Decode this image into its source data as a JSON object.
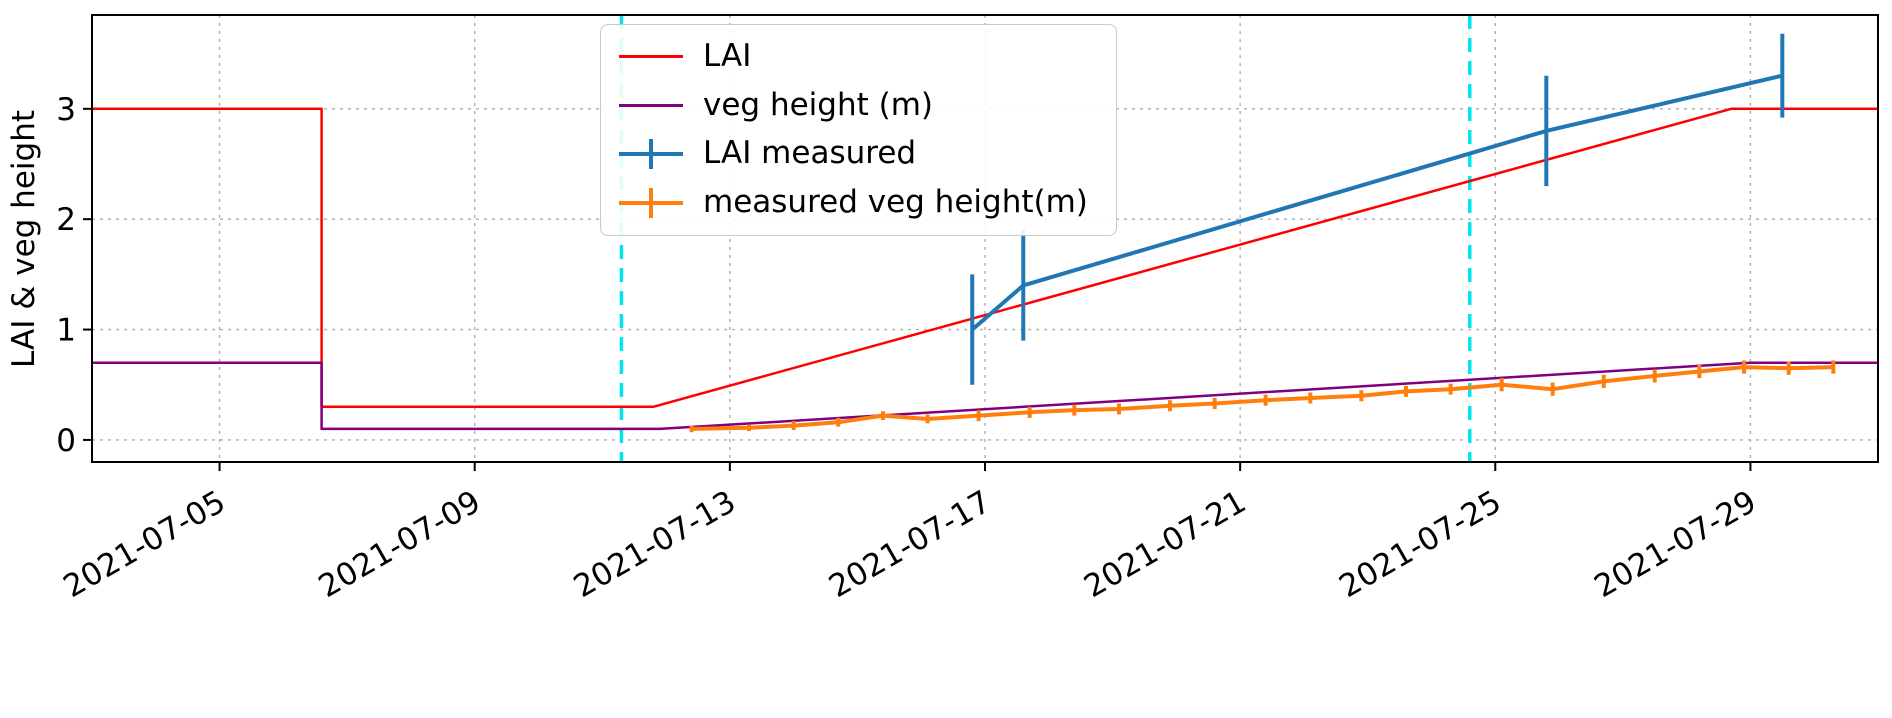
{
  "chart_data": {
    "type": "line",
    "title": "",
    "xlabel": "",
    "ylabel": "LAI & veg height",
    "x_unit": "days since 2021-07-03",
    "xlim": [
      0,
      28
    ],
    "ylim": [
      -0.2,
      3.85
    ],
    "grid": true,
    "grid_color": "#b0b0b0",
    "x_ticks": [
      {
        "day": 2,
        "label": "2021-07-05"
      },
      {
        "day": 6,
        "label": "2021-07-09"
      },
      {
        "day": 10,
        "label": "2021-07-13"
      },
      {
        "day": 14,
        "label": "2021-07-17"
      },
      {
        "day": 18,
        "label": "2021-07-21"
      },
      {
        "day": 22,
        "label": "2021-07-25"
      },
      {
        "day": 26,
        "label": "2021-07-29"
      }
    ],
    "y_ticks": [
      0,
      1,
      2,
      3
    ],
    "vlines": [
      {
        "day": 8.3,
        "color": "#00e5ee",
        "style": "dashed"
      },
      {
        "day": 21.6,
        "color": "#00e5ee",
        "style": "dashed"
      }
    ],
    "series": [
      {
        "name": "LAI",
        "color": "#ff0000",
        "width": 2.5,
        "errorbars": false,
        "points": [
          [
            0,
            3
          ],
          [
            3.6,
            3
          ],
          [
            3.6,
            0.3
          ],
          [
            8.8,
            0.3
          ],
          [
            25.7,
            3
          ],
          [
            28,
            3
          ]
        ]
      },
      {
        "name": "veg height (m)",
        "color": "#800080",
        "width": 2.5,
        "errorbars": false,
        "points": [
          [
            0,
            0.7
          ],
          [
            3.6,
            0.7
          ],
          [
            3.6,
            0.1
          ],
          [
            8.9,
            0.1
          ],
          [
            26,
            0.7
          ],
          [
            28,
            0.7
          ]
        ]
      },
      {
        "name": "LAI measured",
        "color": "#1f77b4",
        "width": 4,
        "errorbars": true,
        "points": [
          [
            13.8,
            1.0,
            0.5
          ],
          [
            14.6,
            1.4,
            0.5
          ],
          [
            22.8,
            2.8,
            0.5
          ],
          [
            26.5,
            3.3,
            0.38
          ]
        ]
      },
      {
        "name": "measured veg height(m)",
        "color": "#ff7f0e",
        "width": 4,
        "errorbars": true,
        "points": [
          [
            9.4,
            0.1,
            0.03
          ],
          [
            10.3,
            0.11,
            0.03
          ],
          [
            11.0,
            0.13,
            0.04
          ],
          [
            11.7,
            0.16,
            0.04
          ],
          [
            12.4,
            0.22,
            0.04
          ],
          [
            13.1,
            0.19,
            0.04
          ],
          [
            13.9,
            0.22,
            0.05
          ],
          [
            14.7,
            0.25,
            0.05
          ],
          [
            15.4,
            0.27,
            0.05
          ],
          [
            16.1,
            0.28,
            0.05
          ],
          [
            16.9,
            0.31,
            0.05
          ],
          [
            17.6,
            0.33,
            0.05
          ],
          [
            18.4,
            0.36,
            0.05
          ],
          [
            19.1,
            0.38,
            0.05
          ],
          [
            19.9,
            0.4,
            0.05
          ],
          [
            20.6,
            0.44,
            0.05
          ],
          [
            21.3,
            0.46,
            0.05
          ],
          [
            22.1,
            0.5,
            0.06
          ],
          [
            22.9,
            0.46,
            0.06
          ],
          [
            23.7,
            0.53,
            0.06
          ],
          [
            24.5,
            0.58,
            0.06
          ],
          [
            25.2,
            0.62,
            0.06
          ],
          [
            25.9,
            0.66,
            0.06
          ],
          [
            26.6,
            0.65,
            0.06
          ],
          [
            27.3,
            0.66,
            0.06
          ]
        ]
      }
    ],
    "legend": {
      "position": "upper center-left",
      "entries": [
        "LAI",
        "veg height (m)",
        "LAI measured",
        "measured veg height(m)"
      ]
    }
  }
}
